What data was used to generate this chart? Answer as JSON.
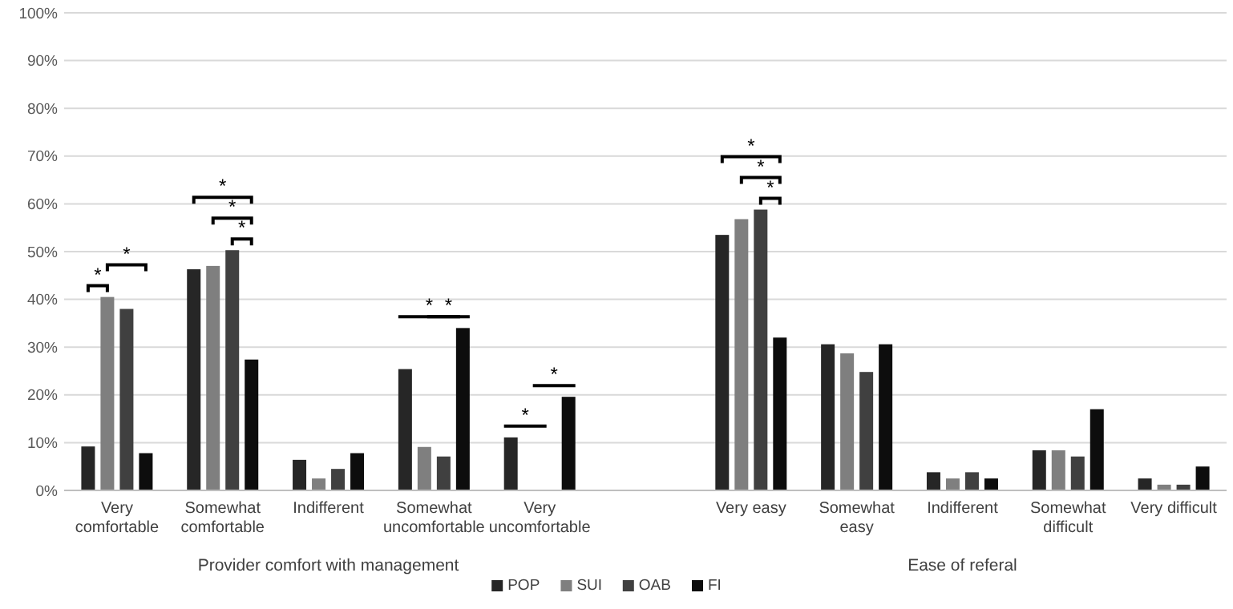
{
  "chart_data": {
    "type": "bar",
    "categories": [
      "Very comfortable",
      "Somewhat comfortable",
      "Indifferent",
      "Somewhat uncomfortable",
      "Very uncomfortable",
      null,
      "Very easy",
      "Somewhat easy",
      "Indifferent",
      "Somewhat difficult",
      "Very difficult"
    ],
    "series": [
      {
        "name": "POP",
        "color": "#262626",
        "values": [
          9.2,
          46.3,
          6.4,
          25.4,
          11.1,
          null,
          53.5,
          30.6,
          3.8,
          8.4,
          2.5
        ]
      },
      {
        "name": "SUI",
        "color": "#7f7f7f",
        "values": [
          40.5,
          47,
          2.5,
          9.1,
          0,
          null,
          56.8,
          28.7,
          2.5,
          8.4,
          1.2
        ]
      },
      {
        "name": "OAB",
        "color": "#404040",
        "values": [
          38,
          50.3,
          4.5,
          7.1,
          0,
          null,
          58.8,
          24.8,
          3.8,
          7.1,
          1.2
        ]
      },
      {
        "name": "FI",
        "color": "#0d0d0d",
        "values": [
          7.8,
          27.4,
          7.8,
          34,
          19.6,
          null,
          32,
          30.6,
          2.5,
          17,
          5
        ]
      }
    ],
    "ylim": [
      0,
      100
    ],
    "yticks": [
      {
        "value": 0,
        "label": "0%"
      },
      {
        "value": 10,
        "label": "10%"
      },
      {
        "value": 20,
        "label": "20%"
      },
      {
        "value": 30,
        "label": "30%"
      },
      {
        "value": 40,
        "label": "40%"
      },
      {
        "value": 50,
        "label": "50%"
      },
      {
        "value": 60,
        "label": "60%"
      },
      {
        "value": 70,
        "label": "70%"
      },
      {
        "value": 80,
        "label": "80%"
      },
      {
        "value": 90,
        "label": "90%"
      },
      {
        "value": 100,
        "label": "100%"
      }
    ],
    "grid": "y",
    "legend": "bottom",
    "annotations": [
      "Provider comfort with management",
      "Ease of referal",
      "*",
      "*",
      "*",
      "*",
      "*",
      "*",
      "*",
      "*",
      "*",
      "*",
      "*",
      "*"
    ]
  }
}
